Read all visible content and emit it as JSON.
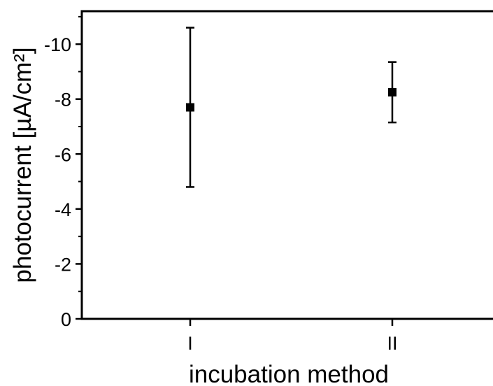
{
  "chart_data": {
    "type": "scatter",
    "title": "",
    "xlabel": "incubation method",
    "ylabel": "photocurrent [µA/cm²]",
    "categories": [
      "I",
      "II"
    ],
    "y_axis_inverted": true,
    "ylim": [
      0,
      -11.2
    ],
    "yticks": [
      0,
      -2,
      -4,
      -6,
      -8,
      -10
    ],
    "ytick_labels": [
      "0",
      "-2",
      "-4",
      "-6",
      "-8",
      "-10"
    ],
    "grid": false,
    "legend": "none",
    "marker": "square",
    "color": "#000000",
    "series": [
      {
        "values": [
          -7.7,
          -8.25
        ],
        "error_low": [
          -4.8,
          -7.15
        ],
        "error_high": [
          -10.6,
          -9.35
        ]
      }
    ]
  }
}
